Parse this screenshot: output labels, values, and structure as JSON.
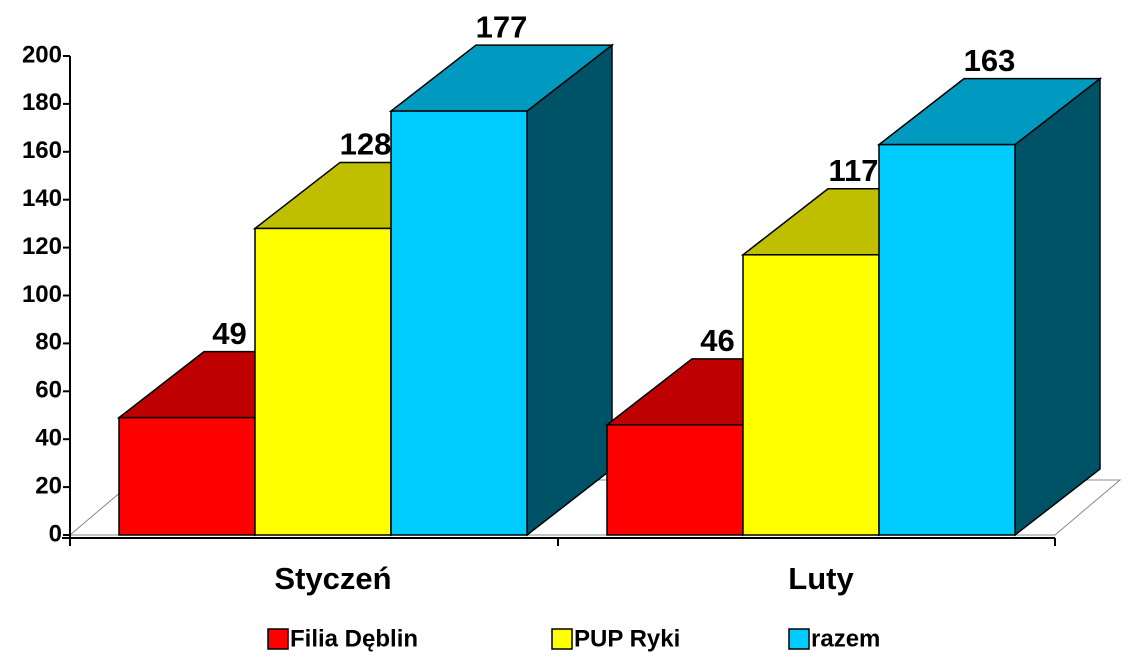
{
  "chart_data": {
    "type": "bar3d",
    "categories": [
      "Styczeń",
      "Luty"
    ],
    "series": [
      {
        "name": "Filia Dęblin",
        "color": "#ff0000",
        "values": [
          49,
          46
        ]
      },
      {
        "name": "PUP Ryki",
        "color": "#ffff00",
        "values": [
          128,
          117
        ]
      },
      {
        "name": "razem",
        "color": "#00ccff",
        "values": [
          177,
          163
        ]
      }
    ],
    "ylim": [
      0,
      200
    ],
    "yticks": [
      0,
      20,
      40,
      60,
      80,
      100,
      120,
      140,
      160,
      180,
      200
    ]
  }
}
